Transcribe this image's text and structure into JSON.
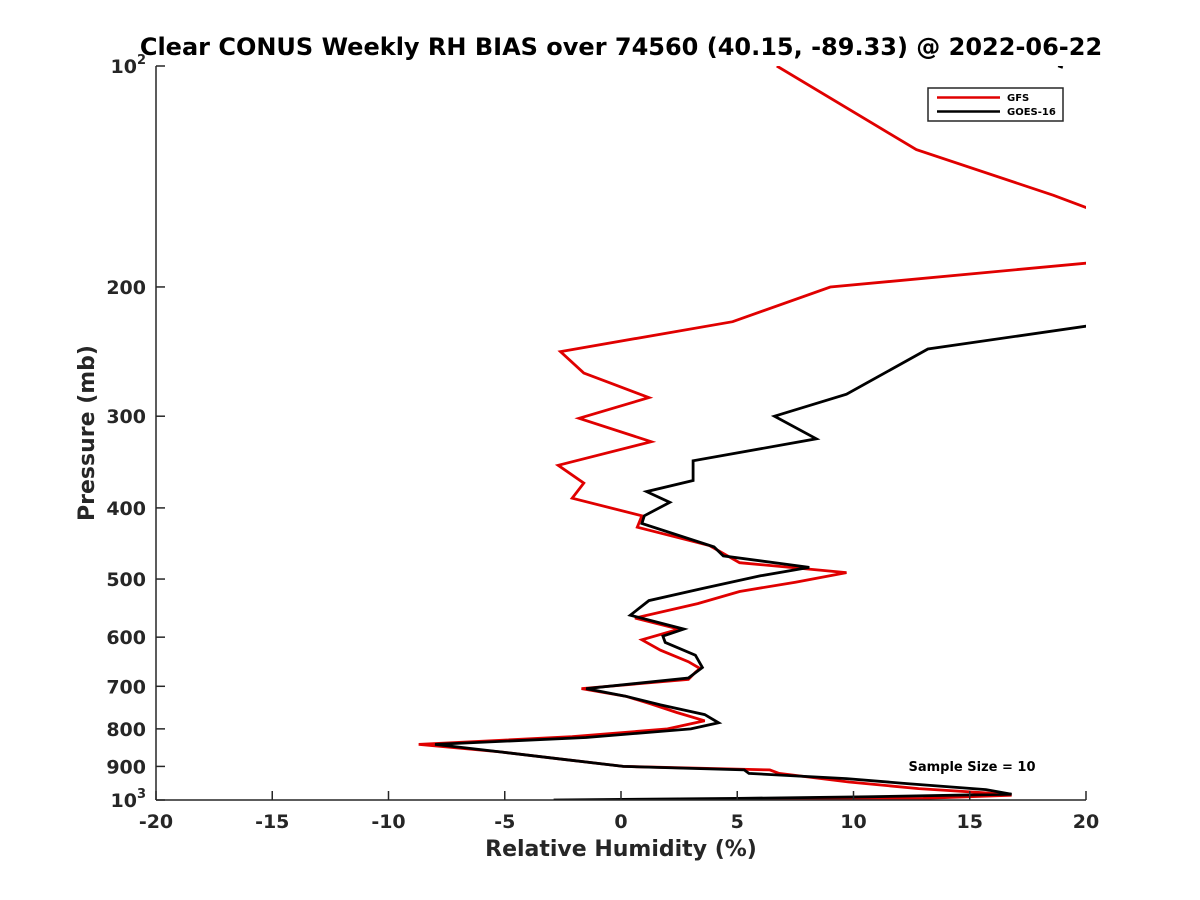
{
  "chart_data": {
    "type": "line",
    "title": "Clear CONUS Weekly RH BIAS over 74560 (40.15, -89.33) @ 2022-06-22",
    "xlabel": "Relative Humidity (%)",
    "ylabel": "Pressure (mb)",
    "xlim": [
      -20,
      20
    ],
    "ylim": [
      100,
      1000
    ],
    "y_scale": "log",
    "y_reversed": true,
    "grid": false,
    "legend_location": "top-right",
    "x_ticks": [
      "-20",
      "-15",
      "-10",
      "-5",
      "0",
      "5",
      "10",
      "15",
      "20"
    ],
    "y_ticks": [
      {
        "value": 100,
        "label": "10",
        "sup": "2"
      },
      {
        "value": 200,
        "label": "200",
        "sup": ""
      },
      {
        "value": 300,
        "label": "300",
        "sup": ""
      },
      {
        "value": 400,
        "label": "400",
        "sup": ""
      },
      {
        "value": 500,
        "label": "500",
        "sup": ""
      },
      {
        "value": 600,
        "label": "600",
        "sup": ""
      },
      {
        "value": 700,
        "label": "700",
        "sup": ""
      },
      {
        "value": 800,
        "label": "800",
        "sup": ""
      },
      {
        "value": 900,
        "label": "900",
        "sup": ""
      },
      {
        "value": 1000,
        "label": "10",
        "sup": "3"
      }
    ],
    "series": [
      {
        "name": "GFS",
        "color": "#e00000",
        "points": [
          [
            6.7,
            100
          ],
          [
            12.7,
            130
          ],
          [
            18.6,
            150
          ],
          [
            20.5,
            158
          ],
          [
            20.5,
            185
          ],
          [
            9.0,
            200
          ],
          [
            4.8,
            223
          ],
          [
            -2.6,
            245
          ],
          [
            -1.6,
            262
          ],
          [
            1.2,
            283
          ],
          [
            -1.8,
            302
          ],
          [
            1.3,
            325
          ],
          [
            -2.7,
            350
          ],
          [
            -1.6,
            370
          ],
          [
            -2.1,
            388
          ],
          [
            0.9,
            410
          ],
          [
            0.7,
            425
          ],
          [
            3.8,
            450
          ],
          [
            5.1,
            475
          ],
          [
            9.7,
            490
          ],
          [
            7.5,
            505
          ],
          [
            5.1,
            520
          ],
          [
            3.3,
            540
          ],
          [
            0.6,
            565
          ],
          [
            2.5,
            585
          ],
          [
            0.9,
            605
          ],
          [
            1.7,
            625
          ],
          [
            2.9,
            648
          ],
          [
            3.4,
            662
          ],
          [
            3.2,
            670
          ],
          [
            2.9,
            685
          ],
          [
            -1.7,
            705
          ],
          [
            0.2,
            722
          ],
          [
            1.3,
            740
          ],
          [
            2.4,
            760
          ],
          [
            3.6,
            780
          ],
          [
            2.0,
            800
          ],
          [
            -2.1,
            820
          ],
          [
            -8.7,
            840
          ],
          [
            -5.2,
            860
          ],
          [
            -2.5,
            880
          ],
          [
            0.1,
            900
          ],
          [
            6.4,
            910
          ],
          [
            6.8,
            920
          ],
          [
            9.8,
            945
          ],
          [
            12.8,
            965
          ],
          [
            15.7,
            978
          ],
          [
            16.8,
            985
          ],
          [
            13.0,
            995
          ],
          [
            2.7,
            1000
          ]
        ]
      },
      {
        "name": "GOES-16",
        "color": "#000000",
        "points": [
          [
            20.5,
            225
          ],
          [
            13.2,
            243
          ],
          [
            9.7,
            280
          ],
          [
            6.6,
            300
          ],
          [
            8.4,
            322
          ],
          [
            3.1,
            345
          ],
          [
            3.1,
            367
          ],
          [
            1.1,
            380
          ],
          [
            2.1,
            393
          ],
          [
            1.0,
            410
          ],
          [
            0.9,
            420
          ],
          [
            4.0,
            452
          ],
          [
            4.4,
            465
          ],
          [
            8.1,
            482
          ],
          [
            6.0,
            495
          ],
          [
            3.5,
            515
          ],
          [
            1.2,
            535
          ],
          [
            0.4,
            560
          ],
          [
            2.7,
            585
          ],
          [
            1.8,
            598
          ],
          [
            1.9,
            610
          ],
          [
            3.2,
            635
          ],
          [
            3.5,
            660
          ],
          [
            2.9,
            682
          ],
          [
            -1.5,
            705
          ],
          [
            0.2,
            722
          ],
          [
            1.7,
            742
          ],
          [
            3.6,
            765
          ],
          [
            4.2,
            785
          ],
          [
            3.0,
            800
          ],
          [
            -1.5,
            822
          ],
          [
            -8.0,
            840
          ],
          [
            -5.2,
            860
          ],
          [
            -2.5,
            880
          ],
          [
            0.1,
            900
          ],
          [
            5.3,
            910
          ],
          [
            5.5,
            920
          ],
          [
            9.7,
            935
          ],
          [
            12.3,
            950
          ],
          [
            15.7,
            968
          ],
          [
            16.8,
            982
          ],
          [
            10.6,
            990
          ],
          [
            5.0,
            995
          ],
          [
            -2.9,
            1000
          ]
        ]
      }
    ],
    "top_right_fragment": [
      [
        19.0,
        100.5
      ],
      [
        18.8,
        100
      ]
    ],
    "annotation": "Sample Size = 10"
  }
}
